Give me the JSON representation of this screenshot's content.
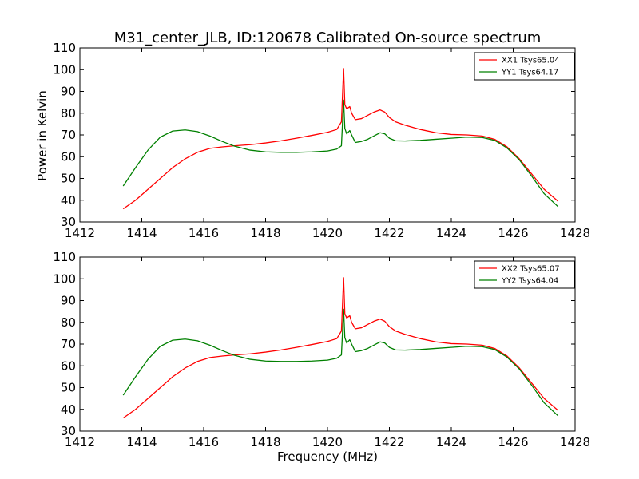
{
  "figure": {
    "title": "M31_center_JLB, ID:120678 Calibrated On-source spectrum",
    "ylabel": "Power in Kelvin",
    "xlabel": "Frequency (MHz)"
  },
  "chart_data": [
    {
      "type": "line",
      "title": "M31_center_JLB, ID:120678 Calibrated On-source spectrum",
      "xlabel": "",
      "ylabel": "Power in Kelvin",
      "xlim": [
        1412,
        1428
      ],
      "ylim": [
        30,
        110
      ],
      "xticks": [
        1412,
        1414,
        1416,
        1418,
        1420,
        1422,
        1424,
        1426,
        1428
      ],
      "yticks": [
        30,
        40,
        50,
        60,
        70,
        80,
        90,
        100,
        110
      ],
      "grid": false,
      "legend": "top-right",
      "series": [
        {
          "name": "XX1 Tsys65.04",
          "color": "#ff0000",
          "x": [
            1413.4,
            1413.8,
            1414.2,
            1414.6,
            1415.0,
            1415.4,
            1415.8,
            1416.2,
            1416.6,
            1417.0,
            1417.5,
            1418.0,
            1418.5,
            1419.0,
            1419.5,
            1420.0,
            1420.3,
            1420.45,
            1420.52,
            1420.56,
            1420.62,
            1420.72,
            1420.78,
            1420.9,
            1421.1,
            1421.3,
            1421.5,
            1421.7,
            1421.85,
            1422.0,
            1422.2,
            1422.5,
            1423.0,
            1423.5,
            1424.0,
            1424.5,
            1425.0,
            1425.4,
            1425.8,
            1426.2,
            1426.6,
            1427.0,
            1427.45
          ],
          "y": [
            36,
            40,
            45,
            50,
            55,
            59,
            62,
            63.8,
            64.5,
            65,
            65.5,
            66.3,
            67.3,
            68.5,
            69.8,
            71.2,
            72.5,
            76,
            100.5,
            84,
            82,
            83,
            80,
            77,
            77.5,
            79,
            80.5,
            81.5,
            80.5,
            78,
            76,
            74.5,
            72.5,
            71,
            70.2,
            70,
            69.5,
            68,
            64.5,
            59,
            52,
            45,
            39.5
          ]
        },
        {
          "name": "YY1 Tsys64.17",
          "color": "#008000",
          "x": [
            1413.4,
            1413.8,
            1414.2,
            1414.6,
            1415.0,
            1415.4,
            1415.8,
            1416.2,
            1416.6,
            1417.0,
            1417.5,
            1418.0,
            1418.5,
            1419.0,
            1419.5,
            1420.0,
            1420.3,
            1420.45,
            1420.52,
            1420.56,
            1420.62,
            1420.72,
            1420.78,
            1420.9,
            1421.1,
            1421.3,
            1421.5,
            1421.7,
            1421.85,
            1422.0,
            1422.2,
            1422.5,
            1423.0,
            1423.5,
            1424.0,
            1424.5,
            1425.0,
            1425.4,
            1425.8,
            1426.2,
            1426.6,
            1427.0,
            1427.45
          ],
          "y": [
            46.5,
            55,
            63,
            69,
            71.8,
            72.3,
            71.5,
            69.5,
            67,
            64.8,
            63,
            62.2,
            62,
            62,
            62.2,
            62.6,
            63.5,
            65,
            86,
            73,
            70.5,
            72,
            70,
            66.5,
            67,
            68,
            69.5,
            71,
            70.5,
            68.5,
            67.3,
            67.2,
            67.5,
            68,
            68.5,
            69,
            68.8,
            67.5,
            64,
            58.5,
            51,
            43,
            37
          ]
        }
      ]
    },
    {
      "type": "line",
      "title": "",
      "xlabel": "Frequency (MHz)",
      "ylabel": "",
      "xlim": [
        1412,
        1428
      ],
      "ylim": [
        30,
        110
      ],
      "xticks": [
        1412,
        1414,
        1416,
        1418,
        1420,
        1422,
        1424,
        1426,
        1428
      ],
      "yticks": [
        30,
        40,
        50,
        60,
        70,
        80,
        90,
        100,
        110
      ],
      "grid": false,
      "legend": "top-right",
      "series": [
        {
          "name": "XX2 Tsys65.07",
          "color": "#ff0000",
          "x": [
            1413.4,
            1413.8,
            1414.2,
            1414.6,
            1415.0,
            1415.4,
            1415.8,
            1416.2,
            1416.6,
            1417.0,
            1417.5,
            1418.0,
            1418.5,
            1419.0,
            1419.5,
            1420.0,
            1420.3,
            1420.45,
            1420.52,
            1420.56,
            1420.62,
            1420.72,
            1420.78,
            1420.9,
            1421.1,
            1421.3,
            1421.5,
            1421.7,
            1421.85,
            1422.0,
            1422.2,
            1422.5,
            1423.0,
            1423.5,
            1424.0,
            1424.5,
            1425.0,
            1425.4,
            1425.8,
            1426.2,
            1426.6,
            1427.0,
            1427.45
          ],
          "y": [
            36,
            40,
            45,
            50,
            55,
            59,
            62,
            63.8,
            64.5,
            65,
            65.5,
            66.3,
            67.3,
            68.5,
            69.8,
            71.2,
            72.5,
            76,
            100.5,
            84,
            82,
            83,
            80,
            77,
            77.5,
            79,
            80.5,
            81.5,
            80.5,
            78,
            76,
            74.5,
            72.5,
            71,
            70.2,
            70,
            69.5,
            68,
            64.5,
            59,
            52,
            45,
            39.5
          ]
        },
        {
          "name": "YY2 Tsys64.04",
          "color": "#008000",
          "x": [
            1413.4,
            1413.8,
            1414.2,
            1414.6,
            1415.0,
            1415.4,
            1415.8,
            1416.2,
            1416.6,
            1417.0,
            1417.5,
            1418.0,
            1418.5,
            1419.0,
            1419.5,
            1420.0,
            1420.3,
            1420.45,
            1420.52,
            1420.56,
            1420.62,
            1420.72,
            1420.78,
            1420.9,
            1421.1,
            1421.3,
            1421.5,
            1421.7,
            1421.85,
            1422.0,
            1422.2,
            1422.5,
            1423.0,
            1423.5,
            1424.0,
            1424.5,
            1425.0,
            1425.4,
            1425.8,
            1426.2,
            1426.6,
            1427.0,
            1427.45
          ],
          "y": [
            46.5,
            55,
            63,
            69,
            71.8,
            72.3,
            71.5,
            69.5,
            67,
            64.8,
            63,
            62.2,
            62,
            62,
            62.2,
            62.6,
            63.5,
            65,
            86,
            73,
            70.5,
            72,
            70,
            66.5,
            67,
            68,
            69.5,
            71,
            70.5,
            68.5,
            67.3,
            67.2,
            67.5,
            68,
            68.5,
            69,
            68.8,
            67.5,
            64,
            58.5,
            51,
            43,
            37
          ]
        }
      ]
    }
  ]
}
